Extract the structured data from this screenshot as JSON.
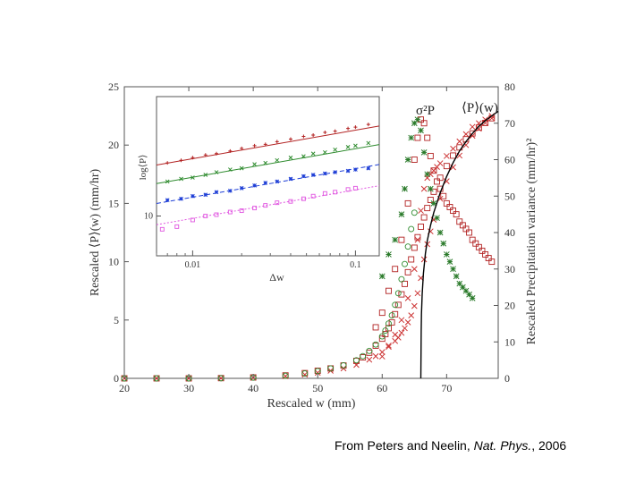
{
  "caption": {
    "prefix": "From Peters and Neelin, ",
    "journal": "Nat. Phys.",
    "suffix": ", 2006"
  },
  "chart_data": [
    {
      "type": "scatter",
      "xlabel": "Rescaled w (mm)",
      "ylabel_left": "Rescaled ⟨P⟩(w) (mm/hr)",
      "ylabel_right": "Rescaled Precipitation variance (mm/hr)²",
      "xlim": [
        20,
        78
      ],
      "ylim_left": [
        0,
        25
      ],
      "ylim_right": [
        0,
        80
      ],
      "x_ticks": [
        20,
        30,
        40,
        50,
        60,
        70
      ],
      "y_ticks_left": [
        0,
        5,
        10,
        15,
        20,
        25
      ],
      "y_ticks_right": [
        0,
        10,
        20,
        30,
        40,
        50,
        60,
        70,
        80
      ],
      "annotations": [
        "σ²P",
        "⟨P⟩(w)"
      ],
      "colors": {
        "mean_dark": "#8b1a1a",
        "mean_red": "#e0403a",
        "variance_green": "#2a7a2a",
        "fit": "#000000"
      },
      "series": [
        {
          "name": "",
          "axis": "left",
          "marker": "square",
          "color": "#b22222",
          "x": [
            20,
            25,
            30,
            35,
            40,
            45,
            48,
            50,
            52,
            54,
            56,
            57,
            58,
            59,
            60,
            60.5,
            61,
            61.5,
            62,
            62.5,
            63,
            63.5,
            64,
            64.5,
            65,
            65.5,
            66,
            66.5,
            67,
            67.5,
            68,
            69,
            70,
            71,
            72,
            73,
            74,
            75,
            76,
            77
          ],
          "y": [
            0,
            0,
            0,
            0.02,
            0.08,
            0.25,
            0.45,
            0.65,
            0.85,
            1.1,
            1.5,
            1.8,
            2.2,
            2.8,
            3.4,
            3.8,
            4.3,
            4.8,
            5.5,
            6.3,
            7.2,
            8.1,
            9.1,
            10.2,
            11.2,
            12.1,
            13.0,
            13.8,
            14.6,
            15.3,
            16.0,
            17.2,
            18.2,
            19.1,
            19.8,
            20.5,
            21.0,
            21.5,
            21.9,
            22.3
          ]
        },
        {
          "name": "",
          "axis": "left",
          "marker": "x",
          "color": "#cc3333",
          "x": [
            20,
            25,
            30,
            35,
            40,
            45,
            48,
            50,
            52,
            54,
            56,
            58,
            59,
            60,
            61,
            62,
            62.5,
            63,
            63.5,
            64,
            64.5,
            65,
            65.5,
            66,
            66.5,
            67,
            67.5,
            68,
            69,
            70,
            71,
            72,
            73,
            74,
            75,
            76,
            77
          ],
          "y": [
            0,
            0,
            0,
            0.01,
            0.05,
            0.18,
            0.32,
            0.48,
            0.65,
            0.85,
            1.15,
            1.6,
            1.9,
            2.25,
            2.7,
            3.2,
            3.5,
            3.9,
            4.3,
            4.8,
            5.4,
            6.2,
            7.3,
            8.6,
            10.2,
            11.5,
            12.6,
            13.6,
            15.4,
            16.9,
            18.1,
            19.1,
            20.0,
            20.8,
            21.4,
            21.9,
            22.3
          ]
        },
        {
          "name": "",
          "axis": "left",
          "marker": "circle",
          "color": "#2e8b2e",
          "x": [
            20,
            25,
            30,
            35,
            40,
            45,
            48,
            50,
            52,
            54,
            56,
            57,
            58,
            59,
            60,
            60.5,
            61,
            61.5,
            62,
            62.5,
            63,
            63.5,
            64,
            64.5,
            65
          ],
          "y": [
            0,
            0,
            0,
            0.01,
            0.06,
            0.22,
            0.42,
            0.62,
            0.85,
            1.12,
            1.55,
            1.9,
            2.35,
            2.9,
            3.6,
            4.1,
            4.7,
            5.4,
            6.3,
            7.3,
            8.5,
            9.8,
            11.3,
            12.8,
            14.2
          ]
        },
        {
          "name": "",
          "axis": "right",
          "marker": "square",
          "color": "#b22222",
          "x": [
            59,
            60,
            61,
            62,
            63,
            64,
            65,
            65.5,
            66,
            66.5,
            67,
            67.5,
            68,
            68.5,
            69,
            69.5,
            70,
            70.5,
            71,
            71.5,
            72,
            72.5,
            73,
            73.5,
            74,
            74.5,
            75,
            75.5,
            76,
            76.5,
            77
          ],
          "y": [
            14,
            18,
            24,
            30,
            38,
            48,
            60,
            66,
            71,
            70,
            66,
            61,
            57,
            54,
            52,
            50,
            48,
            47,
            46,
            45,
            43,
            42,
            41,
            40,
            38,
            37,
            36,
            35,
            34,
            33,
            32
          ]
        },
        {
          "name": "",
          "axis": "right",
          "marker": "x",
          "color": "#cc3333",
          "x": [
            60,
            61,
            62,
            63,
            64,
            65,
            65.5,
            66,
            66.5,
            67,
            67.5,
            68,
            68.5,
            69,
            70,
            71,
            72,
            73,
            74,
            75,
            76,
            77
          ],
          "y": [
            6,
            9,
            12,
            16,
            22,
            30,
            38,
            46,
            52,
            55,
            56,
            57,
            58,
            59,
            61,
            63,
            65,
            67,
            69,
            70,
            71,
            72
          ]
        },
        {
          "name": "",
          "axis": "right",
          "marker": "asterisk",
          "color": "#2a7a2a",
          "x": [
            60,
            61,
            62,
            63,
            63.5,
            64,
            64.5,
            65,
            65.5,
            66,
            66.5,
            67,
            67.5,
            68,
            68.5,
            69,
            69.5,
            70,
            70.5,
            71,
            71.5,
            72,
            72.5,
            73,
            73.5,
            74
          ],
          "y": [
            28,
            34,
            38,
            45,
            52,
            60,
            66,
            70,
            71,
            68,
            62,
            56,
            52,
            48,
            44,
            40,
            37,
            34,
            32,
            30,
            28,
            26,
            25,
            24,
            23,
            22
          ]
        },
        {
          "name": "",
          "axis": "left",
          "marker": "line",
          "color": "#000000",
          "x": [
            66.0,
            66.05,
            66.1,
            66.2,
            66.4,
            66.7,
            67,
            67.5,
            68,
            69,
            70,
            71,
            72,
            73,
            74,
            75,
            76,
            77,
            78
          ],
          "y": [
            0,
            4,
            5.5,
            7.2,
            9.0,
            10.7,
            11.8,
            13.1,
            14.2,
            15.9,
            17.3,
            18.5,
            19.5,
            20.3,
            21.0,
            21.6,
            22.1,
            22.5,
            22.9
          ]
        }
      ]
    },
    {
      "type": "scatter",
      "log_x": true,
      "log_y": true,
      "xlabel": "Δw",
      "ylabel": "log⟨P⟩",
      "x_ticks": [
        "0.01",
        "0.1"
      ],
      "y_ticks": [
        "10"
      ],
      "xlim": [
        0.006,
        0.14
      ],
      "ylim": [
        0.7,
        1.9
      ],
      "series": [
        {
          "name": "",
          "color": "#b22222",
          "marker": "plus",
          "line_style": "solid",
          "slope": 0.215,
          "intercept": 1.862,
          "x": [
            0.007,
            0.0085,
            0.01,
            0.012,
            0.014,
            0.017,
            0.02,
            0.024,
            0.028,
            0.033,
            0.04,
            0.048,
            0.055,
            0.065,
            0.075,
            0.09,
            0.1,
            0.12
          ],
          "y": [
            1.4,
            1.42,
            1.44,
            1.46,
            1.47,
            1.49,
            1.51,
            1.53,
            1.54,
            1.56,
            1.58,
            1.6,
            1.61,
            1.63,
            1.64,
            1.66,
            1.67,
            1.69
          ]
        },
        {
          "name": "",
          "color": "#2e8b2e",
          "marker": "x",
          "line_style": "solid",
          "slope": 0.215,
          "intercept": 1.722,
          "x": [
            0.007,
            0.0085,
            0.01,
            0.012,
            0.014,
            0.017,
            0.02,
            0.024,
            0.028,
            0.033,
            0.04,
            0.048,
            0.055,
            0.065,
            0.075,
            0.09,
            0.1,
            0.12
          ],
          "y": [
            1.26,
            1.28,
            1.29,
            1.31,
            1.33,
            1.35,
            1.36,
            1.39,
            1.4,
            1.42,
            1.44,
            1.45,
            1.47,
            1.48,
            1.5,
            1.52,
            1.53,
            1.55
          ]
        },
        {
          "name": "",
          "color": "#1f3fd6",
          "marker": "asterisk",
          "line_style": "dashed",
          "slope": 0.215,
          "intercept": 1.572,
          "x": [
            0.007,
            0.0085,
            0.01,
            0.012,
            0.014,
            0.017,
            0.02,
            0.024,
            0.028,
            0.033,
            0.04,
            0.048,
            0.055,
            0.065,
            0.075,
            0.09,
            0.1,
            0.12
          ],
          "y": [
            1.12,
            1.13,
            1.15,
            1.16,
            1.18,
            1.19,
            1.21,
            1.23,
            1.25,
            1.26,
            1.28,
            1.3,
            1.31,
            1.32,
            1.33,
            1.34,
            1.35,
            1.36
          ]
        },
        {
          "name": "",
          "color": "#e055e0",
          "marker": "square",
          "line_style": "dotted",
          "slope": 0.215,
          "intercept": 1.412,
          "x": [
            0.0065,
            0.008,
            0.01,
            0.012,
            0.014,
            0.017,
            0.02,
            0.024,
            0.028,
            0.033,
            0.04,
            0.048,
            0.055,
            0.065,
            0.075,
            0.09,
            0.1
          ],
          "y": [
            0.9,
            0.92,
            0.97,
            1.0,
            1.01,
            1.03,
            1.04,
            1.06,
            1.08,
            1.1,
            1.11,
            1.13,
            1.15,
            1.17,
            1.18,
            1.2,
            1.21
          ]
        }
      ]
    }
  ]
}
